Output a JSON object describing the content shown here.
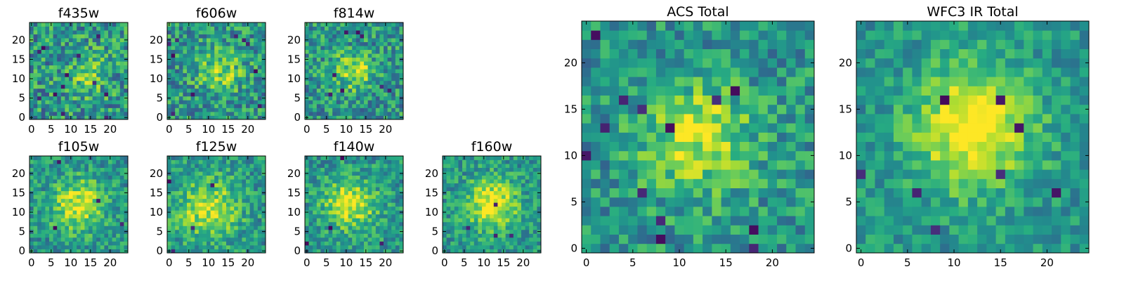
{
  "chart_data": [
    {
      "type": "heatmap",
      "title": "f435w",
      "xlim": [
        0,
        25
      ],
      "ylim": [
        0,
        25
      ],
      "xticks": [
        0,
        5,
        10,
        15,
        20
      ],
      "yticks": [
        0,
        5,
        10,
        15,
        20
      ],
      "colormap": "viridis",
      "pixel_grid": 25,
      "noise": 0.55,
      "peak": [
        14,
        11
      ],
      "sigma": 4.0,
      "amp": 0.2,
      "dark_cells": 12,
      "seed": 11
    },
    {
      "type": "heatmap",
      "title": "f606w",
      "xlim": [
        0,
        25
      ],
      "ylim": [
        0,
        25
      ],
      "xticks": [
        0,
        5,
        10,
        15,
        20
      ],
      "yticks": [
        0,
        5,
        10,
        15,
        20
      ],
      "colormap": "viridis",
      "pixel_grid": 25,
      "noise": 0.5,
      "peak": [
        13,
        12
      ],
      "sigma": 4.0,
      "amp": 0.3,
      "dark_cells": 10,
      "seed": 22
    },
    {
      "type": "heatmap",
      "title": "f814w",
      "xlim": [
        0,
        25
      ],
      "ylim": [
        0,
        25
      ],
      "xticks": [
        0,
        5,
        10,
        15,
        20
      ],
      "yticks": [
        0,
        5,
        10,
        15,
        20
      ],
      "colormap": "viridis",
      "pixel_grid": 25,
      "noise": 0.5,
      "peak": [
        12,
        12
      ],
      "sigma": 3.5,
      "amp": 0.35,
      "dark_cells": 8,
      "seed": 33
    },
    {
      "type": "heatmap",
      "title": "f105w",
      "xlim": [
        0,
        25
      ],
      "ylim": [
        0,
        25
      ],
      "xticks": [
        0,
        5,
        10,
        15,
        20
      ],
      "yticks": [
        0,
        5,
        10,
        15,
        20
      ],
      "colormap": "viridis",
      "pixel_grid": 25,
      "noise": 0.4,
      "peak": [
        12,
        12
      ],
      "sigma": 4.5,
      "amp": 0.45,
      "dark_cells": 4,
      "seed": 44
    },
    {
      "type": "heatmap",
      "title": "f125w",
      "xlim": [
        0,
        25
      ],
      "ylim": [
        0,
        25
      ],
      "xticks": [
        0,
        5,
        10,
        15,
        20
      ],
      "yticks": [
        0,
        5,
        10,
        15,
        20
      ],
      "colormap": "viridis",
      "pixel_grid": 25,
      "noise": 0.4,
      "peak": [
        10,
        11
      ],
      "sigma": 5.5,
      "amp": 0.4,
      "dark_cells": 4,
      "seed": 55
    },
    {
      "type": "heatmap",
      "title": "f140w",
      "xlim": [
        0,
        25
      ],
      "ylim": [
        0,
        25
      ],
      "xticks": [
        0,
        5,
        10,
        15,
        20
      ],
      "yticks": [
        0,
        5,
        10,
        15,
        20
      ],
      "colormap": "viridis",
      "pixel_grid": 25,
      "noise": 0.4,
      "peak": [
        11,
        12
      ],
      "sigma": 4.5,
      "amp": 0.45,
      "dark_cells": 4,
      "seed": 66
    },
    {
      "type": "heatmap",
      "title": "f160w",
      "xlim": [
        0,
        25
      ],
      "ylim": [
        0,
        25
      ],
      "xticks": [
        0,
        5,
        10,
        15,
        20
      ],
      "yticks": [
        0,
        5,
        10,
        15,
        20
      ],
      "colormap": "viridis",
      "pixel_grid": 25,
      "noise": 0.38,
      "peak": [
        12,
        12
      ],
      "sigma": 4.5,
      "amp": 0.5,
      "dark_cells": 4,
      "seed": 77
    },
    {
      "type": "heatmap",
      "title": "ACS Total",
      "xlim": [
        0,
        25
      ],
      "ylim": [
        0,
        25
      ],
      "xticks": [
        0,
        5,
        10,
        15,
        20
      ],
      "yticks": [
        0,
        5,
        10,
        15,
        20
      ],
      "colormap": "viridis",
      "pixel_grid": 25,
      "noise": 0.42,
      "peak": [
        12,
        12
      ],
      "sigma": 4.0,
      "amp": 0.4,
      "dark_cells": 14,
      "seed": 88
    },
    {
      "type": "heatmap",
      "title": "WFC3 IR Total",
      "xlim": [
        0,
        25
      ],
      "ylim": [
        0,
        25
      ],
      "xticks": [
        0,
        5,
        10,
        15,
        20
      ],
      "yticks": [
        0,
        5,
        10,
        15,
        20
      ],
      "colormap": "viridis",
      "pixel_grid": 25,
      "noise": 0.32,
      "peak": [
        12,
        13
      ],
      "sigma": 4.5,
      "amp": 0.55,
      "dark_cells": 8,
      "seed": 99
    }
  ]
}
